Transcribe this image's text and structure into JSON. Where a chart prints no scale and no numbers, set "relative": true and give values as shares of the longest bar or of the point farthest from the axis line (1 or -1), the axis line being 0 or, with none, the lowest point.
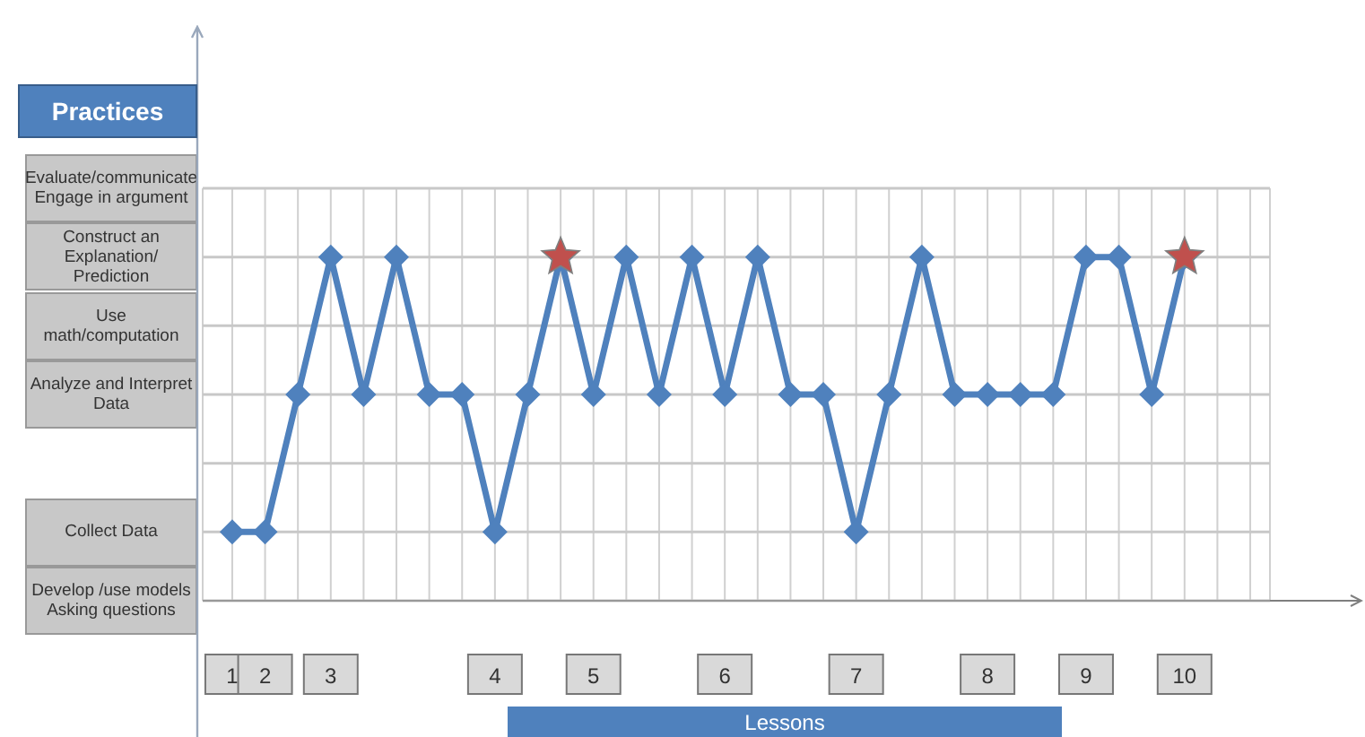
{
  "chart_data": {
    "type": "line",
    "xlabel": "Lessons",
    "annotations": [
      "Practices"
    ],
    "relative": true,
    "categories": [
      "1",
      "2",
      null,
      "3",
      null,
      null,
      null,
      null,
      "4",
      null,
      null,
      "5",
      null,
      null,
      null,
      "6",
      null,
      null,
      null,
      "7",
      null,
      null,
      null,
      "8",
      null,
      null,
      "9",
      null,
      null,
      "10",
      null,
      null
    ],
    "grid": "x",
    "ref_lines": [
      {
        "axis": "y",
        "value": 0,
        "label": "Develop /use models Asking questions"
      },
      {
        "axis": "y",
        "value": 0.2,
        "label": "Collect Data"
      },
      {
        "axis": "y",
        "value": 0.4,
        "label": null
      },
      {
        "axis": "y",
        "value": 0.6,
        "label": "Analyze and Interpret Data"
      },
      {
        "axis": "y",
        "value": 0.8,
        "label": "Use math/computation"
      },
      {
        "axis": "y",
        "value": 1,
        "label": "Construct an Explanation/ Prediction"
      },
      {
        "axis": "y",
        "value": 1.2,
        "label": "Evaluate/communicate Engage in argument"
      }
    ],
    "series": [
      {
        "marker": "diamond",
        "color": "#4f81bd",
        "values": [
          0.2,
          0.2,
          0.6,
          1,
          0.6,
          1,
          0.6,
          0.6,
          0.2,
          0.6,
          1,
          0.6,
          1,
          0.6,
          1,
          0.6,
          1,
          0.6,
          0.6,
          0.2,
          0.6,
          1,
          0.6,
          0.6,
          0.6,
          0.6,
          1,
          1,
          0.6,
          1,
          null,
          null
        ]
      },
      {
        "type": "scatter",
        "marker": "star",
        "color": "#c0504d",
        "values": [
          null,
          null,
          null,
          null,
          null,
          null,
          null,
          null,
          null,
          null,
          1,
          null,
          null,
          null,
          null,
          null,
          null,
          null,
          null,
          null,
          null,
          null,
          null,
          null,
          null,
          null,
          null,
          null,
          null,
          1,
          null,
          null
        ]
      }
    ]
  }
}
